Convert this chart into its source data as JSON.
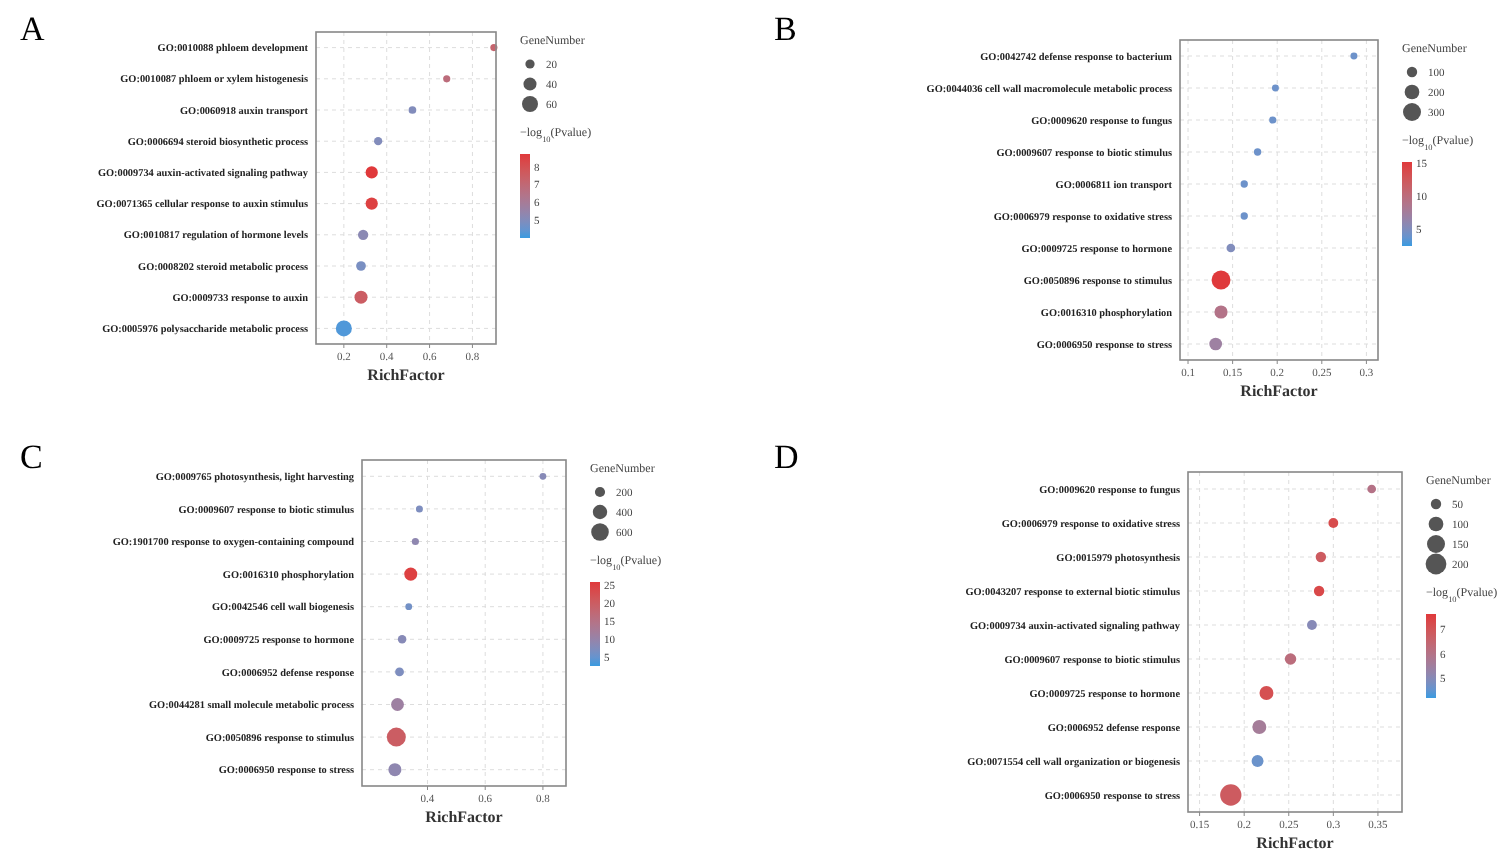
{
  "chart_data": [
    {
      "type": "bubble",
      "title": "A",
      "orientation": "horizontal",
      "xlabel": "RichFactor",
      "legend_title": "GeneNumber",
      "clabel": "−log$_{10}$(Pvalue)",
      "grid": true,
      "categories": [
        "GO:0010088 phloem development",
        "GO:0010087 phloem or xylem histogenesis",
        "GO:0060918 auxin transport",
        "GO:0006694 steroid biosynthetic process",
        "GO:0009734 auxin-activated signaling pathway",
        "GO:0071365 cellular response to auxin stimulus",
        "GO:0010817 regulation of hormone levels",
        "GO:0008202 steroid metabolic process",
        "GO:0009733 response to auxin",
        "GO:0005976 polysaccharide metabolic process"
      ],
      "xlim": [
        0.07,
        0.91
      ],
      "xticks": [
        0.2,
        0.4,
        0.6,
        0.8
      ],
      "size_legend": [
        20,
        40,
        60
      ],
      "clim": [
        4.0,
        8.7
      ],
      "cticks": [
        5,
        6,
        7,
        8
      ],
      "series": [
        {
          "values": [
            0.9,
            0.68,
            0.52,
            0.36,
            0.33,
            0.33,
            0.29,
            0.28,
            0.28,
            0.2
          ],
          "sizes": [
            12,
            12,
            14,
            16,
            35,
            35,
            25,
            22,
            40,
            60
          ],
          "cvalues": [
            7.2,
            6.8,
            5.0,
            5.0,
            8.7,
            8.5,
            5.2,
            4.8,
            7.5,
            4.2
          ]
        }
      ]
    },
    {
      "type": "bubble",
      "title": "B",
      "orientation": "horizontal",
      "xlabel": "RichFactor",
      "legend_title": "GeneNumber",
      "clabel": "−log$_{10}$(Pvalue)",
      "grid": true,
      "categories": [
        "GO:0042742 defense response to bacterium",
        "GO:0044036 cell wall macromolecule metabolic process",
        "GO:0009620 response to fungus",
        "GO:0009607 response to biotic stimulus",
        "GO:0006811 ion transport",
        "GO:0006979 response to oxidative stress",
        "GO:0009725 response to hormone",
        "GO:0050896 response to stimulus",
        "GO:0016310 phosphorylation",
        "GO:0006950 response to stress"
      ],
      "xlim": [
        0.091,
        0.313
      ],
      "xticks": [
        0.1,
        0.15,
        0.2,
        0.25,
        0.3
      ],
      "size_legend": [
        100,
        200,
        300
      ],
      "clim": [
        2.4,
        15.1
      ],
      "cticks": [
        5,
        10,
        15
      ],
      "series": [
        {
          "values": [
            0.286,
            0.198,
            0.195,
            0.178,
            0.163,
            0.163,
            0.148,
            0.137,
            0.137,
            0.131
          ],
          "sizes": [
            45,
            45,
            48,
            50,
            50,
            50,
            70,
            330,
            160,
            150
          ],
          "cvalues": [
            4,
            4,
            4,
            4,
            4,
            4,
            5,
            15,
            9,
            7
          ]
        }
      ]
    },
    {
      "type": "bubble",
      "title": "C",
      "orientation": "horizontal",
      "xlabel": "RichFactor",
      "legend_title": "GeneNumber",
      "clabel": "−log$_{10}$(Pvalue)",
      "grid": true,
      "categories": [
        "GO:0009765 photosynthesis, light harvesting",
        "GO:0009607 response to biotic stimulus",
        "GO:1901700 response to oxygen-containing compound",
        "GO:0016310 phosphorylation",
        "GO:0042546 cell wall biogenesis",
        "GO:0009725 response to hormone",
        "GO:0006952 defense response",
        "GO:0044281 small molecule metabolic process",
        "GO:0050896 response to stimulus",
        "GO:0006950 response to stress"
      ],
      "xlim": [
        0.173,
        0.88
      ],
      "xticks": [
        0.4,
        0.6,
        0.8
      ],
      "size_legend": [
        200,
        400,
        600
      ],
      "clim": [
        2.5,
        25.9
      ],
      "cticks": [
        5,
        10,
        15,
        20,
        25
      ],
      "series": [
        {
          "values": [
            0.8,
            0.372,
            0.358,
            0.342,
            0.335,
            0.312,
            0.303,
            0.296,
            0.292,
            0.287
          ],
          "sizes": [
            90,
            95,
            100,
            330,
            90,
            140,
            150,
            320,
            700,
            330
          ],
          "cvalues": [
            8,
            7,
            9,
            25,
            6,
            8,
            7,
            11,
            20,
            9
          ]
        }
      ]
    },
    {
      "type": "bubble",
      "title": "D",
      "orientation": "horizontal",
      "xlabel": "RichFactor",
      "legend_title": "GeneNumber",
      "clabel": "−log$_{10}$(Pvalue)",
      "grid": true,
      "categories": [
        "GO:0009620 response to fungus",
        "GO:0006979 response to oxidative stress",
        "GO:0015979 photosynthesis",
        "GO:0043207 response to external biotic stimulus",
        "GO:0009734 auxin-activated signaling pathway",
        "GO:0009607 response to biotic stimulus",
        "GO:0009725 response to hormone",
        "GO:0006952 defense response",
        "GO:0071554 cell wall organization or biogenesis",
        "GO:0006950 response to stress"
      ],
      "xlim": [
        0.137,
        0.377
      ],
      "xticks": [
        0.15,
        0.2,
        0.25,
        0.3,
        0.35
      ],
      "size_legend": [
        50,
        100,
        150,
        200
      ],
      "clim": [
        4.2,
        7.6
      ],
      "cticks": [
        5,
        6,
        7
      ],
      "series": [
        {
          "values": [
            0.343,
            0.3,
            0.286,
            0.284,
            0.276,
            0.252,
            0.225,
            0.217,
            0.215,
            0.185
          ],
          "sizes": [
            35,
            45,
            50,
            50,
            45,
            60,
            90,
            90,
            65,
            210
          ],
          "cvalues": [
            6,
            7.2,
            6.8,
            7.3,
            5,
            6.2,
            7.1,
            5.6,
            4.6,
            6.8
          ]
        }
      ]
    }
  ]
}
